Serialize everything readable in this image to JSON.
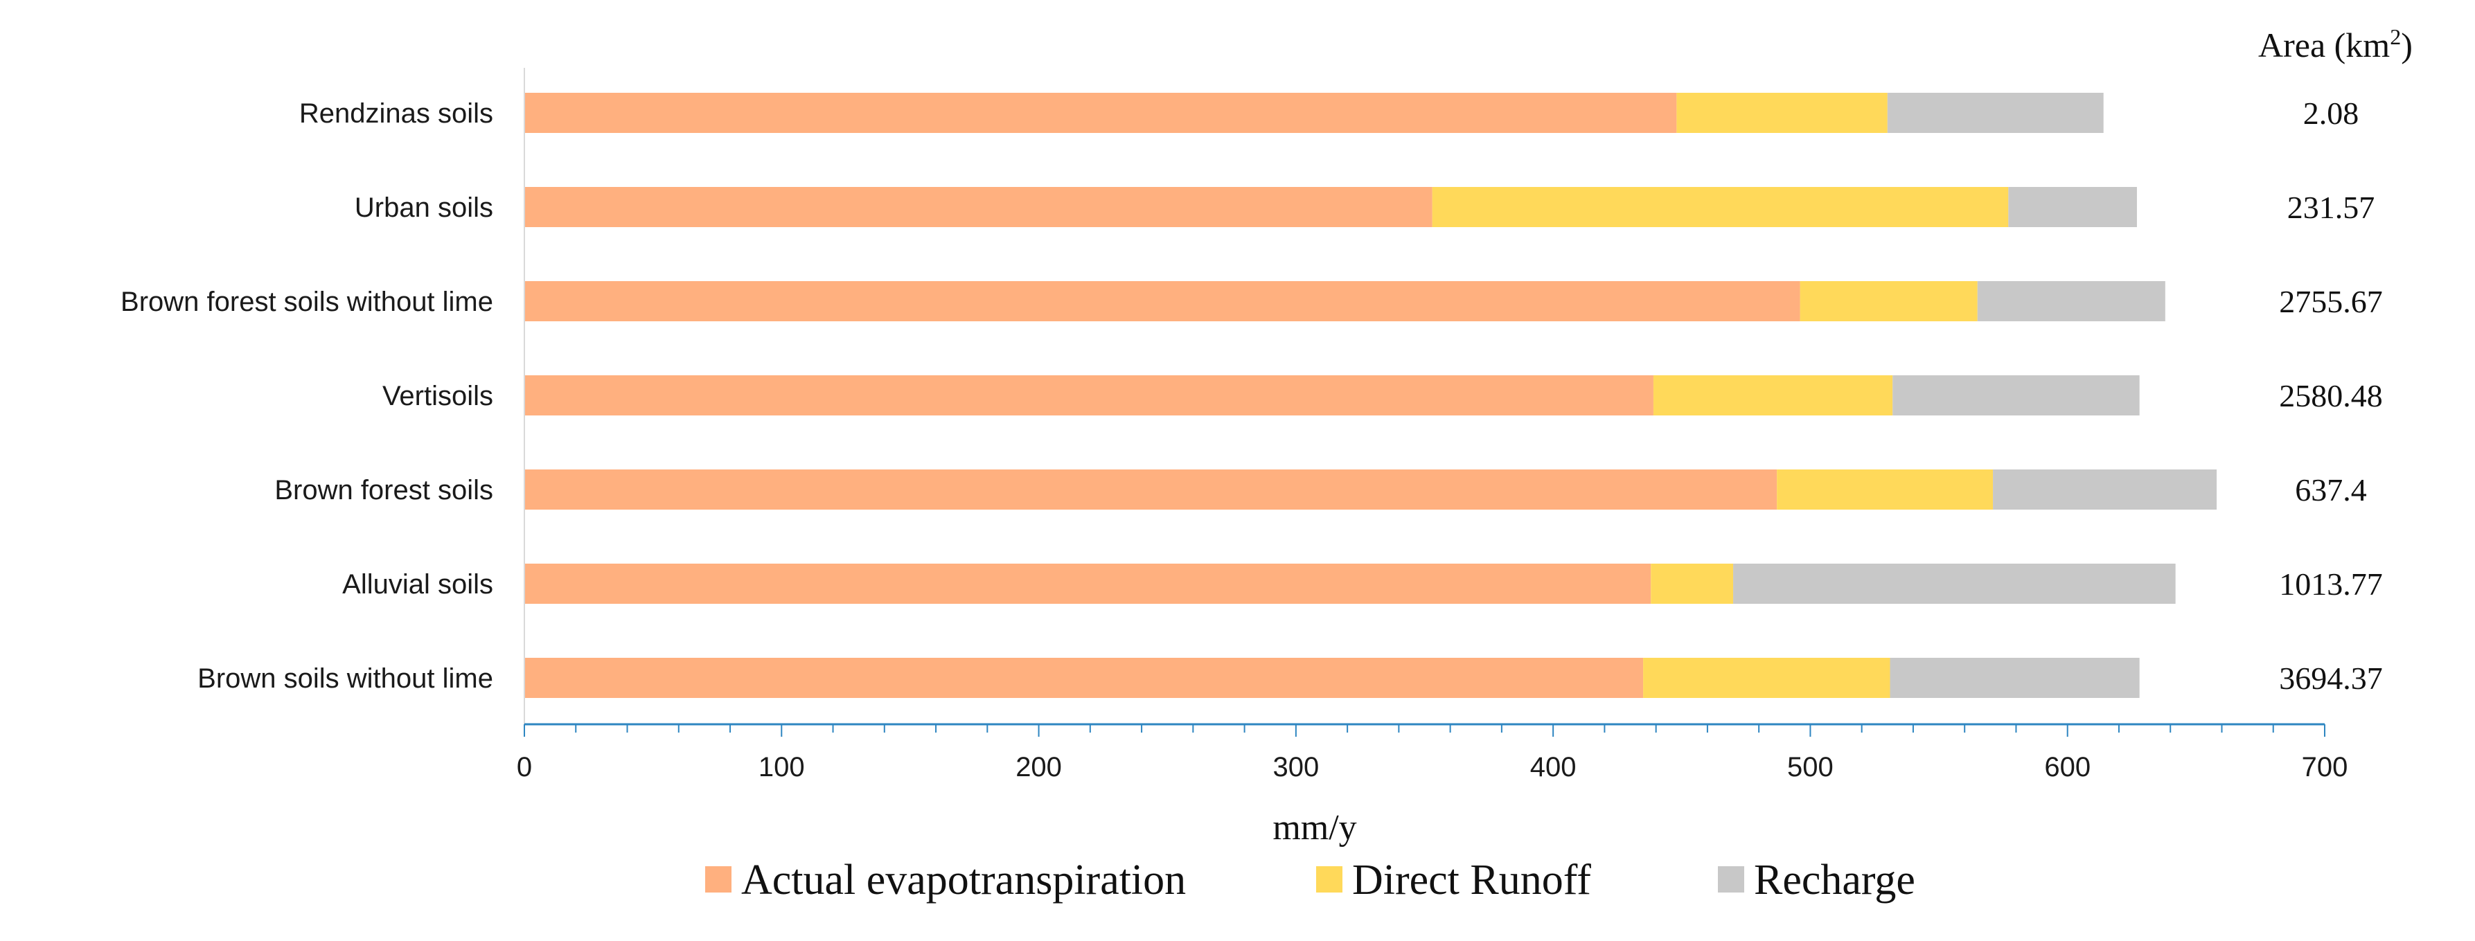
{
  "chart_data": {
    "type": "bar",
    "orientation": "horizontal",
    "stacked": true,
    "categories": [
      "Rendzinas soils",
      "Urban soils",
      "Brown forest soils without lime",
      "Vertisoils",
      "Brown forest soils",
      "Alluvial soils",
      "Brown soils without lime"
    ],
    "series": [
      {
        "name": "Actual evapotranspiration",
        "color": "#FFB07F",
        "values": [
          448,
          353,
          496,
          439,
          487,
          438,
          435
        ]
      },
      {
        "name": "Direct Runoff",
        "color": "#FFD95A",
        "values": [
          82,
          224,
          69,
          93,
          84,
          32,
          96
        ]
      },
      {
        "name": "Recharge",
        "color": "#C8C8C8",
        "values": [
          84,
          50,
          73,
          96,
          87,
          172,
          97
        ]
      }
    ],
    "xlabel": "mm/y",
    "ylabel": "",
    "xlim": [
      0,
      700
    ],
    "x_ticks": [
      "0",
      "100",
      "200",
      "300",
      "400",
      "500",
      "600",
      "700"
    ],
    "grid": false,
    "legend_position": "bottom",
    "area_header": "Area (km",
    "area_header_sup": "2",
    "area_header_close": ")",
    "area_values": [
      "2.08",
      "231.57",
      "2755.67",
      "2580.48",
      "637.4",
      "1013.77",
      "3694.37"
    ]
  }
}
